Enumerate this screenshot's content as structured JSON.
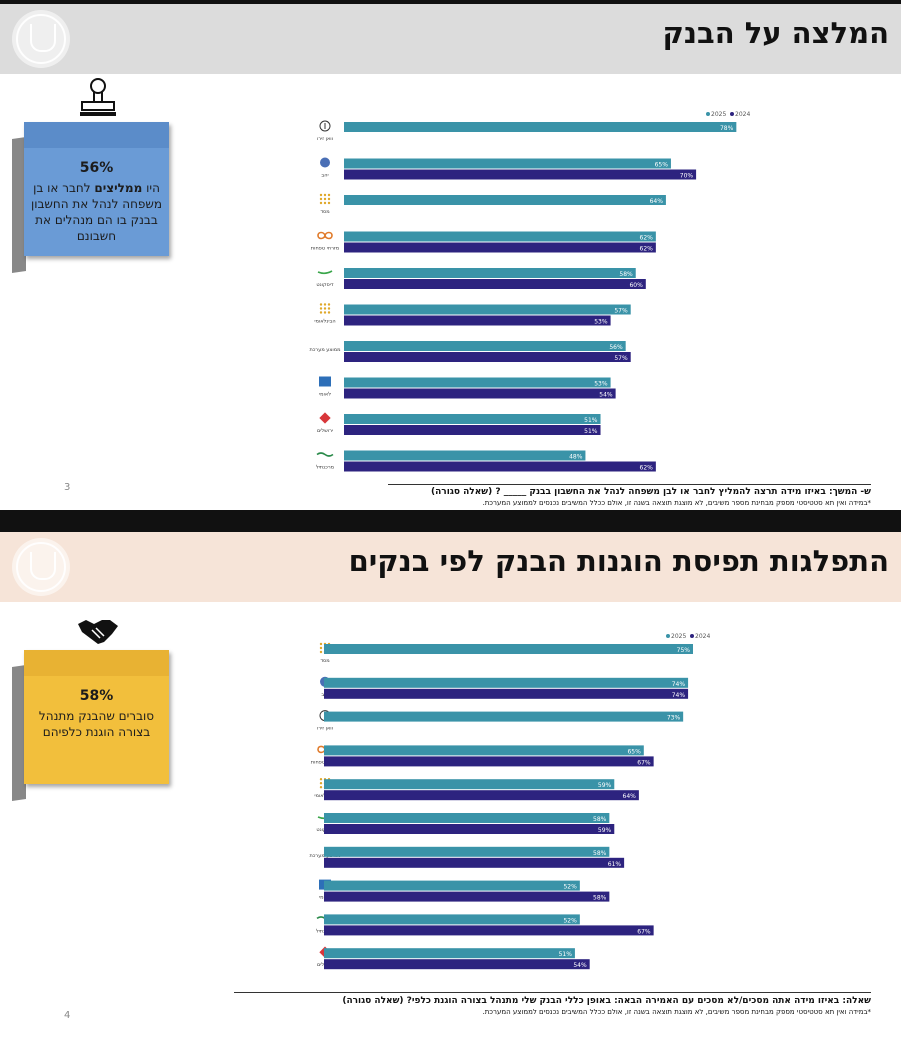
{
  "slides": [
    {
      "title": "המלצה על הבנק",
      "page_number": "3",
      "note": {
        "pct": "56%",
        "pre": "היו ",
        "bold": "ממליצים",
        "post": " לחבר או בן משפחה לנהל את החשבון בבנק בו הם מנהלים את חשבונם"
      },
      "question": "ש- המשך: באיזו מידה תרצה להמליץ לחבר או לבן משפחה לנהל את החשבון בבנק _____ ? (שאלה סגורה)",
      "footnote": "*במידה ואין תא סטטיסטי מספק מבחינת מספר משיבים, לא מוצגת תוצאה בשנה זו, אולם ככלל המשיבים נכנסים לממוצע המערכת.",
      "icon": "stamp-icon",
      "colors": {
        "note": "#6a9bd6",
        "band": "#dcdcdc"
      }
    },
    {
      "title": "התפלגות תפיסת הוגנות הבנק לפי בנקים",
      "page_number": "4",
      "note": {
        "pct": "58%",
        "pre": "",
        "bold": "",
        "post": "סוברים שהבנק מתנהל בצורה הוגנת כלפיהם"
      },
      "question": "שאלה: באיזו מידה אתה מסכים/לא מסכים עם האמירה הבאה: באופן כללי הבנק שלי מתנהל בצורה הוגנת כלפי? (שאלה סגורה)",
      "footnote": "*במידה ואין תא סטטיסטי מספק מבחינת מספר משיבים, לא מוצגת תוצאה בשנה זו, אולם ככלל המשיבים נכנסים לממוצע המערכת.",
      "icon": "handshake-icon",
      "colors": {
        "note": "#f2bf3c",
        "band": "#f6e4d8"
      }
    }
  ],
  "chart_data": [
    {
      "type": "bar",
      "orientation": "horizontal",
      "series": [
        {
          "name": "2025",
          "color": "#3a93a8",
          "values": [
            78,
            65,
            64,
            62,
            58,
            57,
            56,
            53,
            51,
            48
          ]
        },
        {
          "name": "2024",
          "color": "#2d237f",
          "values": [
            null,
            70,
            null,
            62,
            60,
            53,
            57,
            54,
            51,
            62
          ]
        }
      ],
      "categories": [
        "וואן זירו",
        "יהב",
        "מסד",
        "מזרחי טפחות",
        "דיסקונט",
        "פועלים",
        "ממוצע מערכת",
        "לאומי",
        "מרכנתיל",
        "ירושלים"
      ],
      "category_icons": [
        "circle-info-icon",
        "swirl-icon",
        "dots-icon",
        "infinity-icon",
        "discount-icon",
        "dots-icon",
        "",
        "square-icon",
        "diamond-icon",
        "wave-icon"
      ],
      "category_labels": [
        "וואן זירו",
        "יהב",
        "מסד",
        "מזרחי טפחות",
        "דיסקונט",
        "הבינלאומי",
        "ממוצע מערכת",
        "לאומי",
        "ירושלים",
        "מרכנתיל"
      ],
      "xlim": [
        0,
        100
      ],
      "legend": "top-right"
    },
    {
      "type": "bar",
      "orientation": "horizontal",
      "series": [
        {
          "name": "2025",
          "color": "#3a93a8",
          "values": [
            75,
            74,
            73,
            65,
            59,
            58,
            58,
            52,
            52,
            51
          ]
        },
        {
          "name": "2024",
          "color": "#2d237f",
          "values": [
            null,
            74,
            null,
            67,
            64,
            59,
            61,
            58,
            67,
            54
          ]
        }
      ],
      "categories": [
        "מסד",
        "יהב",
        "וואן זירו",
        "מזרחי טפחות",
        "הבינלאומי",
        "דיסקונט",
        "ממוצע מערכת",
        "לאומי",
        "מרכנתיל",
        "ירושלים"
      ],
      "category_icons": [
        "dots-icon",
        "swirl-icon",
        "circle-info-icon",
        "infinity-icon",
        "dots-icon",
        "discount-icon",
        "",
        "square-icon",
        "wave-icon",
        "diamond-icon"
      ],
      "category_labels": [
        "מסד",
        "יהב",
        "וואן זירו",
        "מזרחי טפחות",
        "הבינלאומי",
        "דיסקונט",
        "ממוצע מערכת",
        "לאומי",
        "מרכנתיל",
        "ירושלים"
      ],
      "xlim": [
        0,
        100
      ],
      "legend": "top-right"
    }
  ]
}
